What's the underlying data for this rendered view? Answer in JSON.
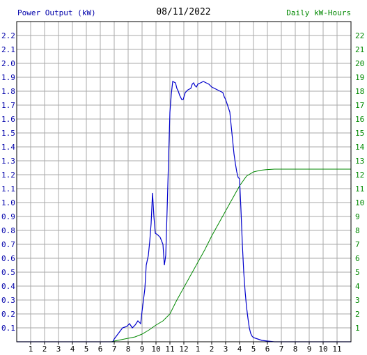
{
  "header": {
    "left_label": "Power Output (kW)",
    "date": "08/11/2022",
    "right_label": "Daily kW-Hours"
  },
  "colors": {
    "power": "#0000cc",
    "energy": "#008800",
    "left_axis_text": "#0000aa",
    "right_axis_text": "#008800",
    "grid": "#aaaaaa"
  },
  "chart_data": {
    "type": "line",
    "title": "08/11/2022",
    "x_tick_labels": [
      "1",
      "2",
      "3",
      "4",
      "5",
      "6",
      "7",
      "8",
      "9",
      "10",
      "11",
      "12",
      "1",
      "2",
      "3",
      "4",
      "5",
      "6",
      "7",
      "8",
      "9",
      "10",
      "11"
    ],
    "left_axis": {
      "label": "Power Output (kW)",
      "range": [
        0,
        2.3
      ],
      "ticks": [
        "0.1",
        "0.2",
        "0.3",
        "0.4",
        "0.5",
        "0.6",
        "0.7",
        "0.8",
        "0.9",
        "1.0",
        "1.1",
        "1.2",
        "1.3",
        "1.4",
        "1.5",
        "1.6",
        "1.7",
        "1.8",
        "1.9",
        "2.0",
        "2.1",
        "2.2"
      ]
    },
    "right_axis": {
      "label": "Daily kW-Hours",
      "range": [
        0,
        23
      ],
      "ticks": [
        "1",
        "2",
        "3",
        "4",
        "5",
        "6",
        "7",
        "8",
        "9",
        "10",
        "11",
        "12",
        "13",
        "14",
        "15",
        "16",
        "17",
        "18",
        "19",
        "20",
        "21",
        "22"
      ]
    },
    "x_range_hours": [
      0,
      24
    ],
    "grid": true,
    "series": [
      {
        "name": "Power Output (kW)",
        "axis": "left",
        "points": [
          [
            0,
            0
          ],
          [
            6.9,
            0
          ],
          [
            7.0,
            0.02
          ],
          [
            7.3,
            0.06
          ],
          [
            7.6,
            0.1
          ],
          [
            7.9,
            0.11
          ],
          [
            8.1,
            0.13
          ],
          [
            8.3,
            0.1
          ],
          [
            8.5,
            0.12
          ],
          [
            8.7,
            0.15
          ],
          [
            8.9,
            0.13
          ],
          [
            9.0,
            0.22
          ],
          [
            9.1,
            0.3
          ],
          [
            9.2,
            0.38
          ],
          [
            9.3,
            0.55
          ],
          [
            9.45,
            0.62
          ],
          [
            9.55,
            0.72
          ],
          [
            9.65,
            0.85
          ],
          [
            9.75,
            1.07
          ],
          [
            9.85,
            0.9
          ],
          [
            9.95,
            0.78
          ],
          [
            10.1,
            0.77
          ],
          [
            10.3,
            0.75
          ],
          [
            10.5,
            0.7
          ],
          [
            10.6,
            0.55
          ],
          [
            10.7,
            0.62
          ],
          [
            10.8,
            0.95
          ],
          [
            10.9,
            1.3
          ],
          [
            11.0,
            1.65
          ],
          [
            11.1,
            1.78
          ],
          [
            11.2,
            1.87
          ],
          [
            11.4,
            1.86
          ],
          [
            11.5,
            1.82
          ],
          [
            11.6,
            1.8
          ],
          [
            11.7,
            1.77
          ],
          [
            11.85,
            1.74
          ],
          [
            11.95,
            1.74
          ],
          [
            12.1,
            1.79
          ],
          [
            12.3,
            1.81
          ],
          [
            12.5,
            1.82
          ],
          [
            12.6,
            1.85
          ],
          [
            12.7,
            1.86
          ],
          [
            12.8,
            1.84
          ],
          [
            12.9,
            1.83
          ],
          [
            13.0,
            1.85
          ],
          [
            13.2,
            1.86
          ],
          [
            13.4,
            1.87
          ],
          [
            13.6,
            1.86
          ],
          [
            13.8,
            1.85
          ],
          [
            14.0,
            1.83
          ],
          [
            14.2,
            1.82
          ],
          [
            14.4,
            1.81
          ],
          [
            14.6,
            1.8
          ],
          [
            14.8,
            1.79
          ],
          [
            14.9,
            1.76
          ],
          [
            15.0,
            1.74
          ],
          [
            15.1,
            1.71
          ],
          [
            15.2,
            1.68
          ],
          [
            15.3,
            1.65
          ],
          [
            15.4,
            1.55
          ],
          [
            15.5,
            1.45
          ],
          [
            15.6,
            1.35
          ],
          [
            15.7,
            1.28
          ],
          [
            15.8,
            1.22
          ],
          [
            15.9,
            1.18
          ],
          [
            16.0,
            1.17
          ],
          [
            16.1,
            0.95
          ],
          [
            16.2,
            0.7
          ],
          [
            16.3,
            0.5
          ],
          [
            16.4,
            0.36
          ],
          [
            16.5,
            0.25
          ],
          [
            16.6,
            0.17
          ],
          [
            16.7,
            0.1
          ],
          [
            16.8,
            0.06
          ],
          [
            16.9,
            0.04
          ],
          [
            17.0,
            0.03
          ],
          [
            17.3,
            0.02
          ],
          [
            17.6,
            0.01
          ],
          [
            18.0,
            0.005
          ],
          [
            18.5,
            0
          ],
          [
            24,
            0
          ]
        ]
      },
      {
        "name": "Daily kW-Hours",
        "axis": "right",
        "points": [
          [
            0,
            0
          ],
          [
            6.8,
            0
          ],
          [
            7.0,
            0.05
          ],
          [
            7.5,
            0.15
          ],
          [
            8.0,
            0.25
          ],
          [
            8.5,
            0.35
          ],
          [
            9.0,
            0.55
          ],
          [
            9.5,
            0.85
          ],
          [
            10.0,
            1.2
          ],
          [
            10.5,
            1.5
          ],
          [
            11.0,
            2.0
          ],
          [
            11.5,
            3.0
          ],
          [
            12.0,
            3.9
          ],
          [
            12.5,
            4.8
          ],
          [
            13.0,
            5.7
          ],
          [
            13.5,
            6.6
          ],
          [
            14.0,
            7.6
          ],
          [
            14.5,
            8.5
          ],
          [
            15.0,
            9.4
          ],
          [
            15.5,
            10.3
          ],
          [
            16.0,
            11.2
          ],
          [
            16.5,
            11.9
          ],
          [
            17.0,
            12.2
          ],
          [
            17.5,
            12.32
          ],
          [
            18.0,
            12.37
          ],
          [
            18.5,
            12.4
          ],
          [
            24,
            12.4
          ]
        ]
      }
    ]
  }
}
